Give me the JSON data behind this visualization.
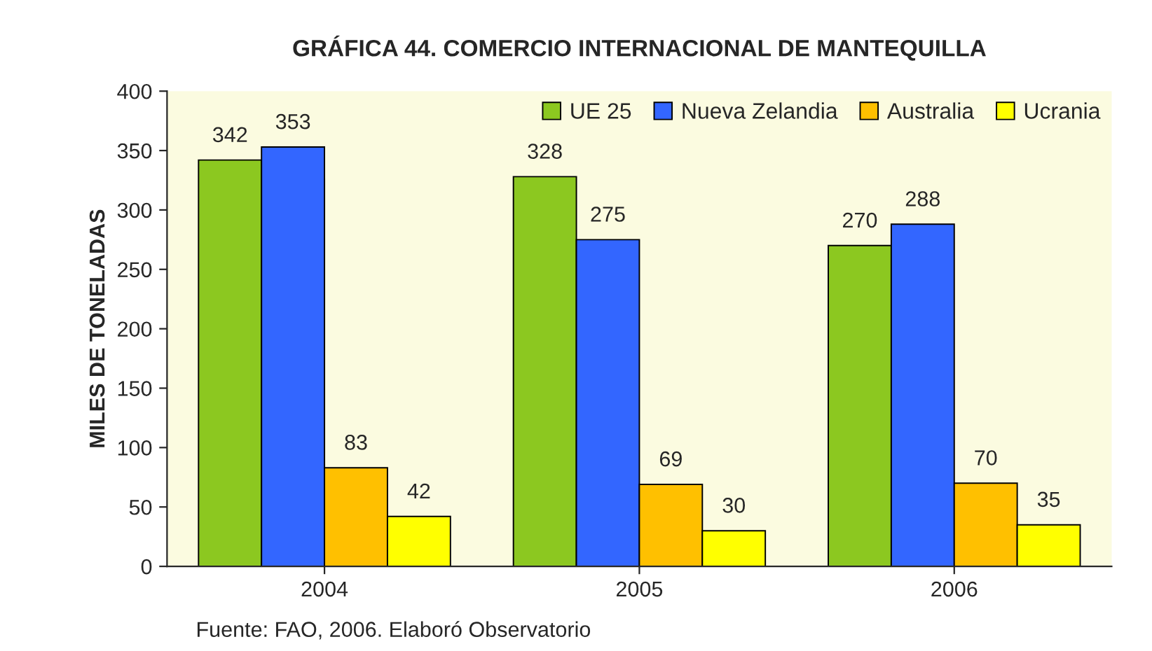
{
  "chart_data": {
    "type": "bar",
    "title": "GRÁFICA 44. COMERCIO INTERNACIONAL DE MANTEQUILLA",
    "ylabel": "MILES DE TONELADAS",
    "categories": [
      "2004",
      "2005",
      "2006"
    ],
    "series": [
      {
        "name": "UE 25",
        "color": "#8cc820",
        "values": [
          342,
          328,
          270
        ]
      },
      {
        "name": "Nueva Zelandia",
        "color": "#3366ff",
        "values": [
          353,
          275,
          288
        ]
      },
      {
        "name": "Australia",
        "color": "#ffc000",
        "values": [
          83,
          69,
          70
        ]
      },
      {
        "name": "Ucrania",
        "color": "#ffff00",
        "values": [
          42,
          30,
          35
        ]
      }
    ],
    "ylim": [
      0,
      400
    ],
    "yticks": [
      0,
      50,
      100,
      150,
      200,
      250,
      300,
      350,
      400
    ],
    "data_labels": true,
    "grid": false,
    "legend": "top right",
    "annotations": [
      "Fuente: FAO, 2006. Elaboró Observatorio"
    ]
  }
}
